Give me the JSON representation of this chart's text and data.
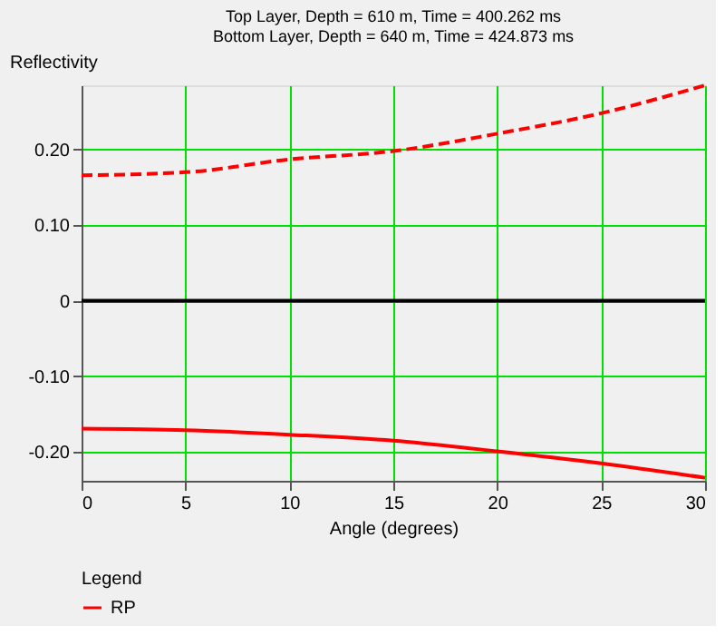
{
  "chart_data": {
    "type": "line",
    "title": [
      "Top Layer, Depth = 610 m, Time = 400.262 ms",
      "Bottom Layer, Depth = 640 m, Time = 424.873 ms"
    ],
    "xlabel": "Angle (degrees)",
    "ylabel": "Reflectivity",
    "legend_title": "Legend",
    "x": [
      0,
      5,
      10,
      15,
      20,
      25,
      30
    ],
    "series": [
      {
        "name": "RP",
        "color": "#ff0000",
        "line_style": "solid",
        "values": [
          -0.169,
          -0.171,
          -0.177,
          -0.185,
          -0.199,
          -0.215,
          -0.234
        ]
      },
      {
        "color": "#ff0000",
        "line_style": "dashed",
        "values": [
          0.166,
          0.17,
          0.187,
          0.198,
          0.221,
          0.248,
          0.285
        ]
      }
    ],
    "xlim": [
      0,
      30
    ],
    "xticks": [
      0,
      5,
      10,
      15,
      20,
      25,
      30
    ],
    "ylim": [
      -0.238,
      0.285
    ],
    "yticks": [
      {
        "value": -0.2,
        "label": "-0.20"
      },
      {
        "value": -0.1,
        "label": "-0.10"
      },
      0,
      {
        "value": 0.1,
        "label": "0.10"
      },
      {
        "value": 0.2,
        "label": "0.20"
      }
    ],
    "ref_lines": [
      {
        "axis": "y",
        "value": 0,
        "color": "#000000"
      }
    ],
    "grid": true,
    "legend": "bottom",
    "marker": "none"
  }
}
